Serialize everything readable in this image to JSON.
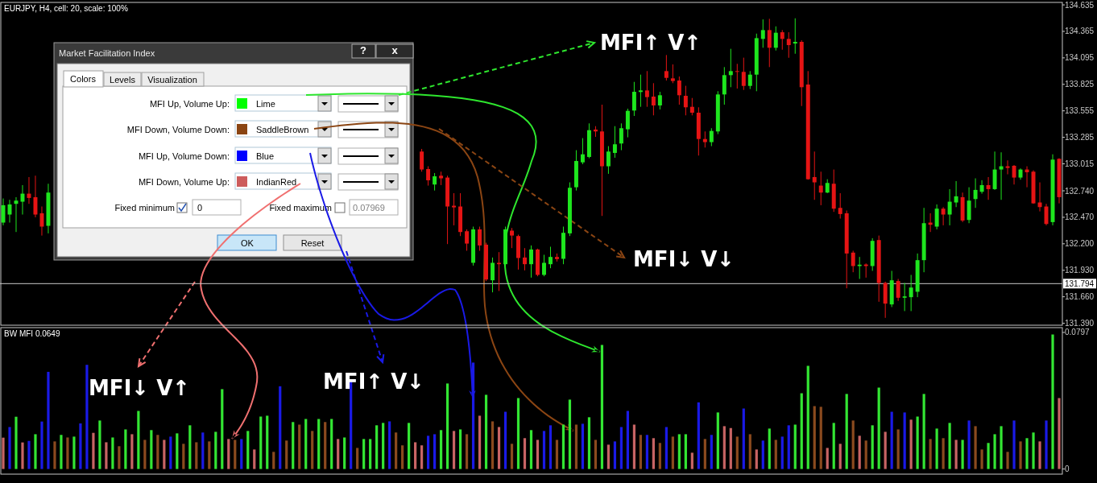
{
  "chart_data": [
    {
      "type": "candlestick",
      "title": "EURJPY, H4, cell: 20, scale: 100%",
      "categories": [
        null,
        null,
        null,
        null,
        null,
        null,
        null,
        null,
        null,
        null,
        null,
        null,
        null,
        null,
        null,
        null,
        null,
        null,
        null,
        null,
        null,
        null,
        null,
        null,
        null,
        null,
        null,
        null,
        null,
        null,
        null,
        null,
        null,
        null,
        null,
        null,
        null,
        null,
        null,
        null,
        null,
        null,
        null,
        null,
        null,
        null,
        null,
        null,
        null,
        null,
        null,
        null,
        null,
        null,
        null,
        null,
        null,
        null,
        null,
        null,
        null,
        null,
        null,
        null,
        null,
        null,
        null,
        null,
        null,
        null,
        null,
        null,
        null,
        null,
        null,
        null,
        null,
        null,
        null,
        null,
        null,
        null,
        null,
        null,
        null,
        null,
        null,
        null,
        null,
        null,
        null,
        null,
        null,
        null,
        null,
        null,
        null,
        null,
        null,
        null,
        null,
        null,
        null,
        null,
        null,
        null,
        null,
        null,
        null,
        null,
        null,
        null,
        null,
        null,
        null,
        null,
        null,
        null,
        null,
        null,
        null,
        null,
        null,
        null,
        null,
        null,
        null,
        null,
        null,
        null,
        null,
        null,
        null,
        null,
        null,
        null,
        null,
        null,
        null,
        null,
        null,
        null,
        null,
        null,
        null,
        null,
        null,
        null,
        null,
        null,
        null,
        null,
        null,
        null,
        null,
        null,
        null,
        null,
        null,
        null,
        null,
        null,
        null,
        null,
        null
      ],
      "ohlc": [
        [
          132.416,
          132.662,
          132.388,
          132.593
        ],
        [
          132.498,
          132.648,
          132.416,
          132.601
        ],
        [
          132.607,
          132.675,
          132.32,
          132.64
        ],
        [
          132.629,
          132.798,
          132.498,
          132.711
        ],
        [
          132.711,
          132.88,
          132.607,
          132.667
        ],
        [
          132.675,
          132.894,
          132.47,
          132.498
        ],
        [
          132.511,
          132.58,
          132.284,
          132.375
        ],
        [
          132.383,
          132.812,
          132.306,
          132.722
        ],
        null,
        null,
        null,
        null,
        null,
        null,
        null,
        null,
        null,
        null,
        null,
        null,
        null,
        null,
        null,
        null,
        null,
        null,
        null,
        null,
        null,
        null,
        null,
        null,
        null,
        null,
        null,
        null,
        null,
        null,
        null,
        null,
        null,
        null,
        null,
        null,
        null,
        null,
        null,
        null,
        null,
        null,
        null,
        null,
        null,
        null,
        null,
        null,
        null,
        null,
        null,
        null,
        null,
        null,
        null,
        null,
        null,
        [
          133.14,
          133.167,
          132.935,
          132.957
        ],
        [
          132.962,
          132.99,
          132.793,
          132.847
        ],
        [
          132.804,
          132.921,
          132.743,
          132.888
        ],
        [
          132.894,
          132.935,
          132.798,
          132.867
        ],
        [
          132.875,
          132.894,
          132.197,
          132.58
        ],
        [
          132.588,
          132.716,
          132.388,
          132.571
        ],
        [
          132.58,
          132.716,
          132.279,
          132.32
        ],
        [
          132.328,
          132.347,
          132.129,
          132.202
        ],
        [
          132.006,
          132.375,
          131.978,
          132.347
        ],
        [
          132.347,
          132.375,
          132.129,
          132.183
        ],
        [
          132.191,
          132.211,
          131.82,
          131.836
        ],
        [
          131.828,
          132.06,
          131.705,
          132.006
        ],
        [
          132.006,
          132.115,
          131.719,
          131.992
        ],
        [
          131.992,
          132.375,
          131.951,
          132.347
        ],
        [
          132.334,
          132.361,
          132.156,
          132.284
        ],
        [
          132.279,
          132.293,
          131.937,
          132.055
        ],
        [
          132.06,
          132.156,
          131.929,
          131.992
        ],
        [
          131.992,
          132.183,
          131.855,
          132.142
        ],
        [
          132.142,
          132.15,
          131.869,
          131.883
        ],
        [
          131.883,
          132.088,
          131.869,
          132.006
        ],
        [
          131.992,
          132.17,
          131.951,
          132.066
        ],
        [
          132.066,
          132.101,
          132.019,
          132.044
        ],
        [
          132.047,
          132.375,
          131.992,
          132.312
        ],
        [
          132.306,
          132.826,
          132.279,
          132.771
        ],
        [
          132.776,
          133.154,
          132.743,
          133.044
        ],
        [
          133.03,
          133.277,
          133.011,
          133.112
        ],
        [
          133.085,
          133.427,
          133.072,
          133.358
        ],
        [
          133.364,
          133.399,
          133.29,
          133.345
        ],
        [
          133.345,
          133.618,
          132.484,
          132.99
        ],
        [
          132.99,
          133.195,
          132.913,
          133.14
        ],
        [
          133.126,
          133.399,
          133.077,
          133.214
        ],
        [
          133.222,
          133.427,
          133.154,
          133.378
        ],
        [
          133.367,
          133.577,
          133.285,
          133.555
        ],
        [
          133.558,
          133.85,
          133.503,
          133.749
        ],
        [
          133.747,
          133.924,
          133.596,
          133.763
        ],
        [
          133.763,
          133.96,
          133.596,
          133.695
        ],
        [
          133.7,
          133.837,
          133.509,
          133.61
        ],
        [
          133.61,
          133.749,
          133.569,
          133.714
        ],
        [
          133.96,
          134.124,
          133.864,
          133.891
        ],
        [
          133.886,
          134.028,
          133.837,
          133.859
        ],
        [
          133.864,
          133.905,
          133.618,
          133.714
        ],
        [
          133.708,
          133.81,
          133.509,
          133.591
        ],
        [
          133.596,
          133.686,
          133.509,
          133.536
        ],
        [
          133.536,
          133.591,
          133.099,
          133.268
        ],
        [
          133.268,
          133.345,
          133.181,
          133.236
        ],
        [
          133.236,
          133.378,
          133.195,
          133.35
        ],
        [
          133.345,
          133.755,
          133.318,
          133.722
        ],
        [
          133.722,
          134.001,
          133.618,
          133.919
        ],
        [
          133.919,
          134.187,
          133.796,
          133.96
        ],
        [
          133.96,
          134.034,
          133.782,
          133.952
        ],
        [
          133.952,
          134.097,
          133.768,
          133.809
        ],
        [
          133.809,
          133.96,
          133.777,
          133.924
        ],
        [
          133.924,
          134.342,
          133.755,
          134.296
        ],
        [
          134.288,
          134.487,
          134.198,
          134.378
        ],
        [
          134.378,
          134.493,
          134.001,
          134.198
        ],
        [
          134.198,
          134.416,
          134.17,
          134.351
        ],
        [
          134.356,
          134.378,
          134.178,
          134.288
        ],
        [
          134.288,
          134.356,
          134.096,
          134.225
        ],
        [
          134.241,
          134.498,
          134.137,
          134.258
        ],
        [
          134.258,
          134.274,
          133.604,
          133.796
        ],
        [
          133.823,
          133.96,
          132.853,
          132.858
        ],
        [
          132.88,
          133.14,
          132.648,
          132.826
        ],
        [
          132.793,
          132.935,
          132.593,
          132.722
        ],
        [
          132.722,
          132.858,
          132.716,
          132.82
        ],
        [
          132.812,
          132.957,
          132.525,
          132.558
        ],
        [
          132.566,
          132.716,
          132.457,
          132.503
        ],
        [
          132.511,
          132.539,
          131.746,
          132.101
        ],
        [
          132.11,
          132.129,
          131.91,
          131.973
        ],
        [
          131.973,
          132.066,
          131.842,
          131.987
        ],
        [
          131.989,
          132.0,
          131.855,
          131.973
        ],
        [
          131.973,
          132.257,
          131.924,
          132.23
        ],
        [
          132.238,
          132.284,
          131.609,
          131.801
        ],
        [
          131.801,
          131.814,
          131.445,
          131.59
        ],
        [
          131.582,
          131.924,
          131.555,
          131.828
        ],
        [
          131.82,
          131.842,
          131.618,
          131.65
        ],
        [
          131.65,
          131.801,
          131.514,
          131.664
        ],
        [
          131.656,
          131.883,
          131.514,
          131.754
        ],
        [
          131.711,
          132.101,
          131.656,
          132.033
        ],
        [
          132.033,
          132.566,
          131.91,
          132.41
        ],
        [
          132.416,
          132.511,
          132.32,
          132.394
        ],
        [
          132.375,
          132.601,
          132.347,
          132.558
        ],
        [
          132.558,
          132.574,
          132.388,
          132.498
        ],
        [
          132.498,
          132.757,
          132.388,
          132.629
        ],
        [
          132.621,
          132.839,
          132.574,
          132.684
        ],
        [
          132.675,
          132.722,
          132.421,
          132.437
        ],
        [
          132.443,
          132.776,
          132.41,
          132.64
        ],
        [
          132.656,
          132.867,
          132.566,
          132.749
        ],
        [
          132.73,
          132.848,
          132.711,
          132.798
        ],
        [
          132.798,
          132.88,
          132.648,
          132.757
        ],
        [
          132.757,
          133.14,
          132.749,
          132.957
        ],
        [
          132.957,
          133.132,
          132.648,
          132.99
        ],
        [
          132.99,
          133.05,
          132.908,
          132.973
        ],
        [
          132.995,
          133.003,
          132.804,
          132.875
        ],
        [
          132.875,
          132.968,
          132.853,
          132.957
        ],
        [
          132.957,
          132.99,
          132.776,
          132.929
        ],
        [
          132.935,
          132.949,
          132.607,
          132.612
        ],
        [
          132.621,
          132.826,
          132.53,
          132.574
        ],
        [
          132.58,
          132.607,
          132.388,
          132.402
        ],
        [
          132.421,
          133.112,
          132.388,
          133.058
        ],
        [
          133.066,
          133.072,
          132.612,
          132.675
        ]
      ],
      "ylim": [
        131.37,
        134.66
      ],
      "yticks": [
        134.635,
        134.365,
        134.095,
        133.825,
        133.555,
        133.285,
        133.015,
        {
          "value": 132.74,
          "label": "132.740"
        },
        {
          "value": 132.47,
          "label": "132.470"
        },
        {
          "value": 132.2,
          "label": "132.200"
        },
        {
          "value": 131.93,
          "label": "131.930"
        },
        {
          "value": 131.66,
          "label": "131.660"
        },
        {
          "value": 131.39,
          "label": "131.390"
        }
      ],
      "tick_labels": "y",
      "ref_lines": [
        {
          "axis": "y",
          "value": 131.794,
          "label": "131.794"
        }
      ],
      "annotations": [
        "MFI↑ V↑",
        "MFI↓ V↓"
      ]
    },
    {
      "type": "bar",
      "title": "BW MFI 0.0649",
      "categories": [
        null,
        null,
        null,
        null,
        null,
        null,
        null,
        null,
        null,
        null,
        null,
        null,
        null,
        null,
        null,
        null,
        null,
        null,
        null,
        null,
        null,
        null,
        null,
        null,
        null,
        null,
        null,
        null,
        null,
        null,
        null,
        null,
        null,
        null,
        null,
        null,
        null,
        null,
        null,
        null,
        null,
        null,
        null,
        null,
        null,
        null,
        null,
        null,
        null,
        null,
        null,
        null,
        null,
        null,
        null,
        null,
        null,
        null,
        null,
        null,
        null,
        null,
        null,
        null,
        null,
        null,
        null,
        null,
        null,
        null,
        null,
        null,
        null,
        null,
        null,
        null,
        null,
        null,
        null,
        null,
        null,
        null,
        null,
        null,
        null,
        null,
        null,
        null,
        null,
        null,
        null,
        null,
        null,
        null,
        null,
        null,
        null,
        null,
        null,
        null,
        null,
        null,
        null,
        null,
        null,
        null,
        null,
        null,
        null,
        null,
        null,
        null,
        null,
        null,
        null,
        null,
        null,
        null,
        null,
        null,
        null,
        null,
        null,
        null,
        null,
        null,
        null,
        null,
        null,
        null,
        null,
        null,
        null,
        null,
        null,
        null,
        null,
        null,
        null,
        null,
        null,
        null,
        null,
        null,
        null,
        null,
        null,
        null,
        null,
        null,
        null,
        null,
        null,
        null,
        null,
        null,
        null,
        null,
        null,
        null,
        null,
        null,
        null,
        null,
        null
      ],
      "values": [
        0.0183,
        0.0245,
        0.0305,
        0.0155,
        0.0164,
        0.0203,
        0.0277,
        0.0567,
        0.0161,
        0.0199,
        0.0184,
        0.0189,
        0.0266,
        0.0608,
        0.0211,
        0.0283,
        0.0156,
        0.0184,
        0.0133,
        0.0231,
        0.0203,
        0.0339,
        0.017,
        0.0227,
        0.0199,
        0.017,
        0.0189,
        0.0208,
        0.0147,
        0.0255,
        0.0156,
        0.0213,
        0.0161,
        0.0217,
        0.0466,
        0.0175,
        0.017,
        0.0175,
        0.0222,
        0.0114,
        0.0306,
        0.0311,
        0.01,
        0.0483,
        0.0166,
        0.0274,
        0.0259,
        0.0292,
        0.0222,
        0.0292,
        0.0274,
        0.0292,
        0.0175,
        0.0184,
        0.0511,
        0.0123,
        0.0175,
        0.0175,
        0.0255,
        0.0269,
        0.0278,
        0.0213,
        0.0138,
        0.0269,
        0.0156,
        0.0138,
        0.0194,
        0.0203,
        0.0227,
        0.0499,
        0.0222,
        0.0231,
        0.0203,
        0.0621,
        0.0311,
        0.0433,
        0.0278,
        0.0245,
        0.0334,
        0.0147,
        0.0414,
        0.018,
        0.0227,
        0.017,
        0.0222,
        0.0255,
        0.017,
        0.0259,
        0.0405,
        0.0259,
        0.0264,
        0.0302,
        0.017,
        0.0724,
        0.0142,
        0.0161,
        0.0245,
        0.0339,
        0.0259,
        0.0199,
        0.0199,
        0.018,
        0.0152,
        0.0245,
        0.0189,
        0.0203,
        0.0203,
        0.0095,
        0.0389,
        0.0175,
        0.0199,
        0.033,
        0.025,
        0.0239,
        0.0189,
        0.0353,
        0.0203,
        0.0114,
        0.0166,
        0.0236,
        0.017,
        0.0189,
        0.0255,
        0.0259,
        0.0442,
        0.0602,
        0.0367,
        0.0363,
        0.0123,
        0.0269,
        0.0147,
        0.0438,
        0.0283,
        0.0194,
        0.0166,
        0.0255,
        0.0475,
        0.0217,
        0.0334,
        0.0231,
        0.033,
        0.0288,
        0.0306,
        0.0438,
        0.0175,
        0.0236,
        0.018,
        0.0269,
        0.017,
        0.017,
        0.0283,
        0.025,
        0.0114,
        0.0152,
        0.0203,
        0.025,
        0.01,
        0.0283,
        0.0161,
        0.018,
        0.0213,
        0.0161,
        0.0283,
        0.0785,
        0.0414
      ],
      "colors": [
        "#c86464",
        "#1a1ae6",
        "#33e633",
        "#c86464",
        "#1a1ae6",
        "#33e633",
        "#1a1ae6",
        "#1a1ae6",
        "#8b4a1e",
        "#33e633",
        "#8b4a1e",
        "#33e633",
        "#1a1ae6",
        "#1a1ae6",
        "#c86464",
        "#33e633",
        "#c86464",
        "#33e633",
        "#8b4a1e",
        "#33e633",
        "#c86464",
        "#33e633",
        "#8b4a1e",
        "#33e633",
        "#8b4a1e",
        "#c86464",
        "#1a1ae6",
        "#33e633",
        "#8b4a1e",
        "#33e633",
        "#8b4a1e",
        "#1a1ae6",
        "#8b4a1e",
        "#33e633",
        "#33e633",
        "#c86464",
        "#8b4a1e",
        "#1a1ae6",
        "#33e633",
        "#c86464",
        "#33e633",
        "#33e633",
        "#8b4a1e",
        "#1a1ae6",
        "#8b4a1e",
        "#33e633",
        "#8b4a1e",
        "#33e633",
        "#8b4a1e",
        "#33e633",
        "#8b4a1e",
        "#33e633",
        "#c86464",
        "#33e633",
        "#1a1ae6",
        "#8b4a1e",
        "#33e633",
        "#33e633",
        "#33e633",
        "#33e633",
        "#1a1ae6",
        "#8b4a1e",
        "#8b4a1e",
        "#33e633",
        "#c86464",
        "#c86464",
        "#1a1ae6",
        "#1a1ae6",
        "#33e633",
        "#33e633",
        "#c86464",
        "#33e633",
        "#8b4a1e",
        "#1a1ae6",
        "#c86464",
        "#33e633",
        "#8b4a1e",
        "#c86464",
        "#1a1ae6",
        "#8b4a1e",
        "#33e633",
        "#c86464",
        "#33e633",
        "#c86464",
        "#1a1ae6",
        "#1a1ae6",
        "#8b4a1e",
        "#33e633",
        "#33e633",
        "#8b4a1e",
        "#1a1ae6",
        "#33e633",
        "#8b4a1e",
        "#33e633",
        "#c86464",
        "#1a1ae6",
        "#1a1ae6",
        "#1a1ae6",
        "#c86464",
        "#8b4a1e",
        "#1a1ae6",
        "#c86464",
        "#8b4a1e",
        "#1a1ae6",
        "#8b4a1e",
        "#33e633",
        "#33e633",
        "#c86464",
        "#1a1ae6",
        "#8b4a1e",
        "#1a1ae6",
        "#33e633",
        "#c86464",
        "#c86464",
        "#8b4a1e",
        "#1a1ae6",
        "#8b4a1e",
        "#c86464",
        "#1a1ae6",
        "#33e633",
        "#8b4a1e",
        "#1a1ae6",
        "#1a1ae6",
        "#33e633",
        "#33e633",
        "#33e633",
        "#8b4a1e",
        "#8b4a1e",
        "#c86464",
        "#33e633",
        "#c86464",
        "#33e633",
        "#8b4a1e",
        "#c86464",
        "#8b4a1e",
        "#33e633",
        "#33e633",
        "#c86464",
        "#1a1ae6",
        "#8b4a1e",
        "#1a1ae6",
        "#c86464",
        "#33e633",
        "#33e633",
        "#8b4a1e",
        "#33e633",
        "#8b4a1e",
        "#33e633",
        "#c86464",
        "#33e633",
        "#1a1ae6",
        "#8b4a1e",
        "#8b4a1e",
        "#33e633",
        "#33e633",
        "#33e633",
        "#8b4a1e",
        "#1a1ae6",
        "#8b4a1e",
        "#33e633",
        "#33e633",
        "#c86464",
        "#1a1ae6",
        "#33e633",
        "#c86464"
      ],
      "ylim": [
        -0.003,
        0.0825
      ],
      "yticks": [
        0.0797,
        0
      ],
      "tick_labels": "y",
      "annotations": [
        "MFI↓ V↑",
        "MFI↑ V↓"
      ]
    },
    {
      "type": "other",
      "title": "Market Facilitation Index",
      "colors": [
        "#00ff00",
        "#8b4513",
        "#0000ff",
        "#cd5c5c"
      ],
      "annotations": [
        "?",
        "x",
        "Colors",
        "Levels",
        "Visualization",
        "MFI Up, Volume Up:",
        "Lime",
        "MFI Down, Volume Down:",
        "SaddleBrown",
        "MFI Up, Volume Down:",
        "Blue",
        "MFI Down, Volume Up:",
        "IndianRed",
        "Fixed minimum",
        "0",
        "Fixed maximum",
        "0.07969",
        "OK",
        "Reset"
      ]
    }
  ]
}
